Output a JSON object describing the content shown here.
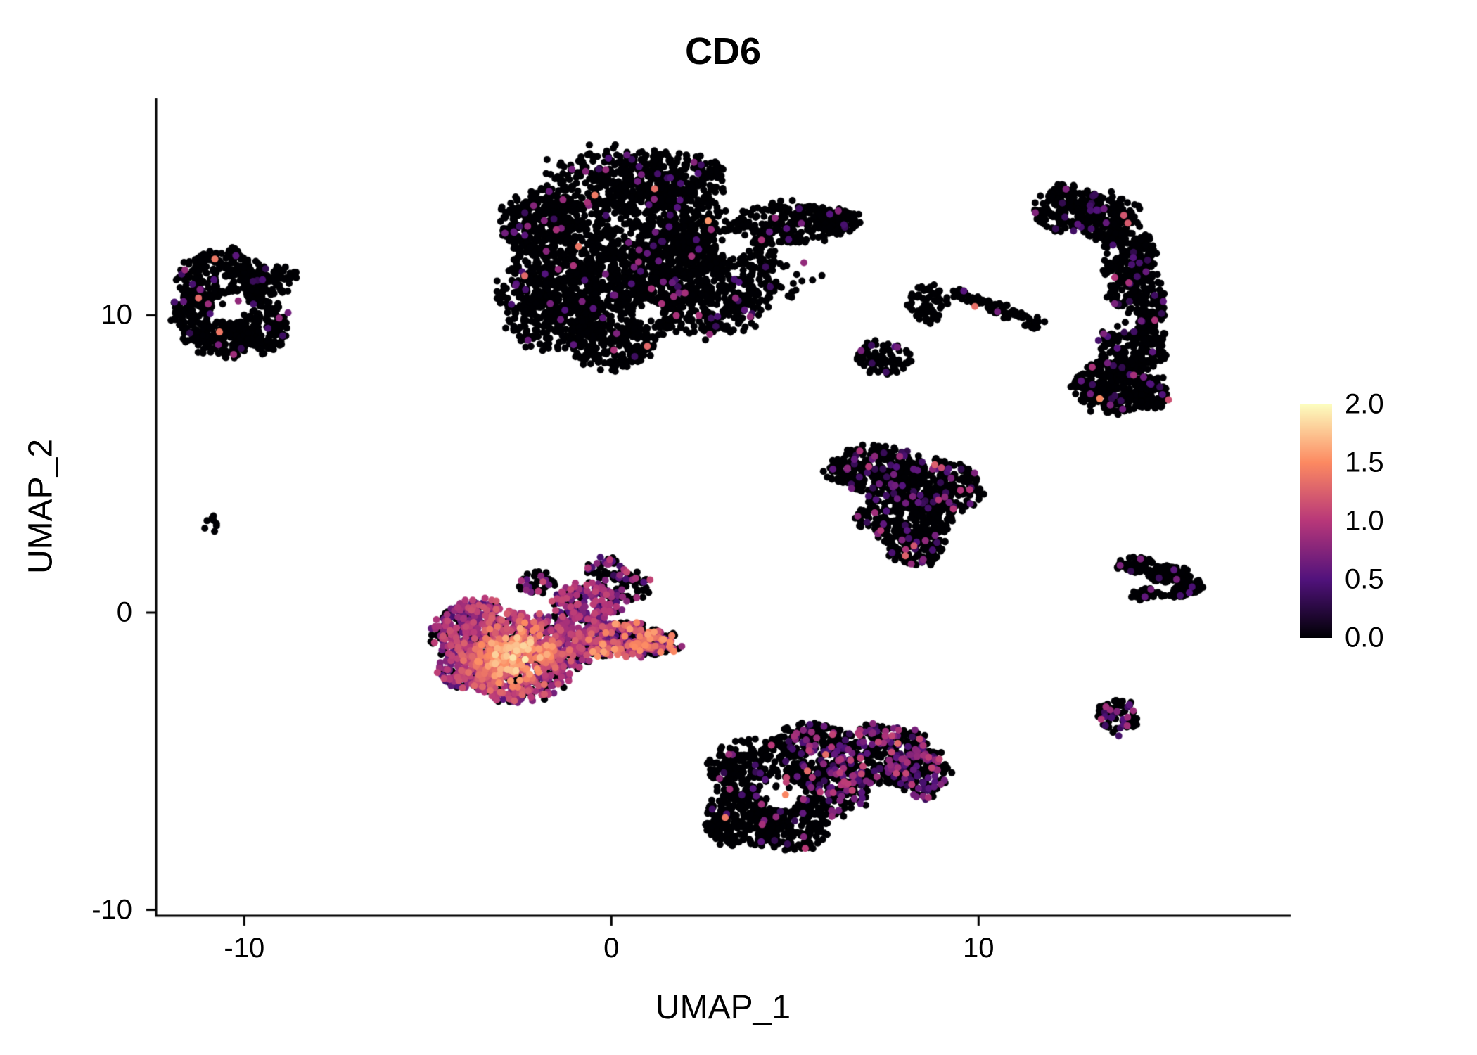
{
  "chart_data": {
    "type": "scatter",
    "title": "CD6",
    "xlabel": "UMAP_1",
    "ylabel": "UMAP_2",
    "xlim": [
      -12.4,
      18.5
    ],
    "ylim": [
      -10.2,
      17.3
    ],
    "x_ticks": [
      "-10",
      "0",
      "10"
    ],
    "x_tick_values": [
      -10,
      0,
      10
    ],
    "y_ticks": [
      "-10",
      "0",
      "10"
    ],
    "y_tick_values": [
      -10,
      0,
      10
    ],
    "grid": false,
    "legend_position": "right",
    "point_radius_px": 5,
    "colorbar": {
      "min": 0,
      "max": 2,
      "tick_labels": [
        "2.0",
        "1.5",
        "1.0",
        "0.5",
        "0.0"
      ],
      "tick_values": [
        2.0,
        1.5,
        1.0,
        0.5,
        0.0
      ],
      "colormap": "magma",
      "stops": [
        {
          "t": 0.0,
          "color": "#000004"
        },
        {
          "t": 0.25,
          "color": "#51127c"
        },
        {
          "t": 0.5,
          "color": "#b73779"
        },
        {
          "t": 0.75,
          "color": "#fc8961"
        },
        {
          "t": 1.0,
          "color": "#fcfdbf"
        }
      ]
    },
    "clusters": [
      {
        "name": "top-center-large",
        "p_pos": 0.035,
        "v": [
          0.35,
          0.95
        ],
        "skew": 1.5,
        "rare_hi": {
          "p": 0.002,
          "v": [
            1.2,
            1.6
          ]
        },
        "holes": [
          {
            "c": [
              3.3,
              12.4
            ],
            "r": 0.45
          },
          {
            "c": [
              1.0,
              10.1
            ],
            "r": 0.4
          }
        ],
        "blobs": [
          {
            "c": [
              0.2,
              12.4
            ],
            "rx": 2.9,
            "ry": 3.1,
            "n": 1500
          },
          {
            "c": [
              2.3,
              11.3
            ],
            "rx": 2.2,
            "ry": 2.0,
            "n": 800
          },
          {
            "c": [
              -1.6,
              10.6
            ],
            "rx": 1.5,
            "ry": 1.7,
            "n": 400
          },
          {
            "c": [
              1.4,
              14.6
            ],
            "rx": 1.7,
            "ry": 0.9,
            "n": 250
          },
          {
            "c": [
              -2.0,
              13.2
            ],
            "rx": 1.0,
            "ry": 1.0,
            "n": 180
          },
          {
            "c": [
              0.0,
              9.0
            ],
            "rx": 1.2,
            "ry": 0.8,
            "n": 200
          },
          {
            "c": [
              4.8,
              13.1
            ],
            "rx": 1.5,
            "ry": 0.7,
            "n": 240
          },
          {
            "c": [
              6.1,
              13.2
            ],
            "rx": 0.7,
            "ry": 0.4,
            "n": 80
          },
          {
            "c": [
              5.0,
              11.2
            ],
            "rx": 0.8,
            "ry": 0.6,
            "n": 14
          }
        ]
      },
      {
        "name": "left",
        "p_pos": 0.03,
        "v": [
          0.3,
          0.95
        ],
        "skew": 1.4,
        "rare_hi": {
          "p": 0.003,
          "v": [
            1.2,
            1.45
          ]
        },
        "holes": [
          {
            "c": [
              -10.3,
              10.3
            ],
            "r": 0.5
          }
        ],
        "blobs": [
          {
            "c": [
              -10.6,
              11.2
            ],
            "rx": 1.2,
            "ry": 1.0,
            "n": 300
          },
          {
            "c": [
              -11.4,
              10.0
            ],
            "rx": 0.6,
            "ry": 0.9,
            "n": 130
          },
          {
            "c": [
              -9.7,
              9.7
            ],
            "rx": 0.9,
            "ry": 1.0,
            "n": 220
          },
          {
            "c": [
              -10.6,
              9.2
            ],
            "rx": 0.8,
            "ry": 0.6,
            "n": 110
          },
          {
            "c": [
              -9.2,
              11.2
            ],
            "rx": 0.6,
            "ry": 0.5,
            "n": 70
          }
        ],
        "extra_points": [
          {
            "p": [
              -10.8,
              11.9
            ],
            "v": 1.4
          }
        ]
      },
      {
        "name": "tiny-far-left",
        "p_pos": 0,
        "v": [
          0.3,
          0.8
        ],
        "blobs": [
          {
            "c": [
              -10.9,
              3.0
            ],
            "rx": 0.18,
            "ry": 0.3,
            "n": 8
          }
        ]
      },
      {
        "name": "central-high-expression",
        "p_pos": 0.72,
        "v": [
          0.35,
          1.1
        ],
        "skew": 1.0,
        "hotspot": {
          "c": [
            -2.6,
            -1.4
          ],
          "sigma": 0.9,
          "gain": 1.0
        },
        "blobs": [
          {
            "c": [
              -3.5,
              -0.7
            ],
            "rx": 1.3,
            "ry": 1.1,
            "n": 420
          },
          {
            "c": [
              -2.6,
              -1.9
            ],
            "rx": 1.4,
            "ry": 1.1,
            "n": 480
          },
          {
            "c": [
              -1.3,
              -0.9
            ],
            "rx": 1.3,
            "ry": 0.9,
            "n": 380
          },
          {
            "c": [
              -3.9,
              -1.8
            ],
            "rx": 0.8,
            "ry": 0.8,
            "n": 180
          },
          {
            "c": [
              0.3,
              -0.9
            ],
            "rx": 1.2,
            "ry": 0.6,
            "n": 240,
            "p_pos": 0.6,
            "v": [
              0.4,
              1.6
            ]
          },
          {
            "c": [
              1.3,
              -1.0
            ],
            "rx": 0.6,
            "ry": 0.4,
            "n": 90,
            "p_pos": 0.55,
            "v": [
              0.4,
              1.6
            ]
          },
          {
            "c": [
              -0.6,
              0.4
            ],
            "rx": 1.0,
            "ry": 0.6,
            "n": 150
          },
          {
            "c": [
              0.4,
              0.9
            ],
            "rx": 0.7,
            "ry": 0.5,
            "n": 60,
            "p_pos": 0.25
          },
          {
            "c": [
              -2.0,
              1.0
            ],
            "rx": 0.5,
            "ry": 0.4,
            "n": 40,
            "p_pos": 0.3
          },
          {
            "c": [
              -0.2,
              1.5
            ],
            "rx": 0.5,
            "ry": 0.35,
            "n": 40,
            "p_pos": 0.2
          }
        ]
      },
      {
        "name": "mid-right-triangle",
        "p_pos": 0.1,
        "v": [
          0.3,
          1.0
        ],
        "skew": 1.4,
        "rare_hi": {
          "p": 0.003,
          "v": [
            1.1,
            1.3
          ]
        },
        "blobs": [
          {
            "c": [
              7.2,
              4.8
            ],
            "rx": 1.3,
            "ry": 0.8,
            "n": 280
          },
          {
            "c": [
              8.9,
              4.2
            ],
            "rx": 1.2,
            "ry": 0.9,
            "n": 280
          },
          {
            "c": [
              8.0,
              3.2
            ],
            "rx": 1.3,
            "ry": 0.8,
            "n": 260
          },
          {
            "c": [
              8.3,
              2.2
            ],
            "rx": 0.8,
            "ry": 0.6,
            "n": 130
          }
        ]
      },
      {
        "name": "bottom-center",
        "p_pos": 0.05,
        "v": [
          0.3,
          1.1
        ],
        "skew": 1.3,
        "rare_hi": {
          "p": 0.003,
          "v": [
            1.2,
            1.5
          ]
        },
        "holes": [
          {
            "c": [
              4.6,
              -6.1
            ],
            "r": 0.55
          }
        ],
        "blobs": [
          {
            "c": [
              4.0,
              -5.3
            ],
            "rx": 1.3,
            "ry": 1.0,
            "n": 300
          },
          {
            "c": [
              3.6,
              -6.9
            ],
            "rx": 1.1,
            "ry": 1.0,
            "n": 280
          },
          {
            "c": [
              5.0,
              -7.3
            ],
            "rx": 0.9,
            "ry": 0.7,
            "n": 160
          },
          {
            "c": [
              5.8,
              -5.9
            ],
            "rx": 1.2,
            "ry": 1.0,
            "n": 280,
            "p_pos": 0.25
          },
          {
            "c": [
              7.3,
              -4.8
            ],
            "rx": 1.4,
            "ry": 1.0,
            "n": 320,
            "p_pos": 0.3
          },
          {
            "c": [
              8.4,
              -5.4
            ],
            "rx": 0.8,
            "ry": 0.8,
            "n": 150,
            "p_pos": 0.3
          },
          {
            "c": [
              5.4,
              -4.3
            ],
            "rx": 0.9,
            "ry": 0.6,
            "n": 140,
            "p_pos": 0.2
          }
        ],
        "extra_points": [
          {
            "p": [
              3.1,
              -6.9
            ],
            "v": 1.4
          },
          {
            "p": [
              7.8,
              -4.4
            ],
            "v": 1.3
          }
        ]
      },
      {
        "name": "right-tall-crescent",
        "p_pos": 0.05,
        "v": [
          0.3,
          1.0
        ],
        "skew": 1.5,
        "rare_hi": {
          "p": 0.004,
          "v": [
            1.1,
            1.45
          ]
        },
        "holes": [
          {
            "c": [
              13.9,
              9.8
            ],
            "r": 0.45
          },
          {
            "c": [
              13.2,
              11.9
            ],
            "r": 0.35
          }
        ],
        "blobs": [
          {
            "c": [
              12.4,
              13.6
            ],
            "rx": 0.9,
            "ry": 0.8,
            "n": 180
          },
          {
            "c": [
              13.5,
              13.3
            ],
            "rx": 0.9,
            "ry": 0.8,
            "n": 200
          },
          {
            "c": [
              14.0,
              12.0
            ],
            "rx": 0.8,
            "ry": 0.9,
            "n": 200
          },
          {
            "c": [
              14.3,
              10.5
            ],
            "rx": 0.8,
            "ry": 1.0,
            "n": 220
          },
          {
            "c": [
              14.2,
              9.0
            ],
            "rx": 0.9,
            "ry": 1.0,
            "n": 240
          },
          {
            "c": [
              13.6,
              7.6
            ],
            "rx": 1.0,
            "ry": 0.9,
            "n": 260
          },
          {
            "c": [
              14.6,
              7.4
            ],
            "rx": 0.6,
            "ry": 0.6,
            "n": 110
          }
        ],
        "extra_points": [
          {
            "p": [
              13.3,
              7.2
            ],
            "v": 1.5
          }
        ]
      },
      {
        "name": "small-mid-a",
        "p_pos": 0.04,
        "v": [
          0.3,
          0.8
        ],
        "blobs": [
          {
            "c": [
              8.6,
              10.4
            ],
            "rx": 0.55,
            "ry": 0.65,
            "n": 70
          }
        ]
      },
      {
        "name": "small-mid-b",
        "p_pos": 0.05,
        "v": [
          0.3,
          0.8
        ],
        "blobs": [
          {
            "c": [
              7.4,
              8.6
            ],
            "rx": 0.8,
            "ry": 0.55,
            "n": 90
          }
        ]
      },
      {
        "name": "mid-streak",
        "p_pos": 0.04,
        "v": [
          0.3,
          0.8
        ],
        "blobs": [
          {
            "c": [
              9.5,
              10.7
            ],
            "rx": 0.25,
            "ry": 0.18,
            "n": 16
          },
          {
            "c": [
              10.0,
              10.5
            ],
            "rx": 0.3,
            "ry": 0.18,
            "n": 20
          },
          {
            "c": [
              10.5,
              10.25
            ],
            "rx": 0.3,
            "ry": 0.18,
            "n": 22
          },
          {
            "c": [
              11.0,
              10.0
            ],
            "rx": 0.3,
            "ry": 0.18,
            "n": 20
          },
          {
            "c": [
              11.5,
              9.75
            ],
            "rx": 0.3,
            "ry": 0.18,
            "n": 16
          }
        ],
        "extra_points": [
          {
            "p": [
              9.9,
              10.3
            ],
            "v": 1.35
          }
        ]
      },
      {
        "name": "right-arrow",
        "p_pos": 0.06,
        "v": [
          0.3,
          0.9
        ],
        "blobs": [
          {
            "c": [
              14.3,
              1.6
            ],
            "rx": 0.5,
            "ry": 0.28,
            "n": 60
          },
          {
            "c": [
              15.2,
              1.3
            ],
            "rx": 0.6,
            "ry": 0.3,
            "n": 80
          },
          {
            "c": [
              15.8,
              0.9
            ],
            "rx": 0.35,
            "ry": 0.25,
            "n": 40
          },
          {
            "c": [
              14.6,
              0.6
            ],
            "rx": 0.45,
            "ry": 0.22,
            "n": 40
          },
          {
            "c": [
              15.3,
              0.7
            ],
            "rx": 0.4,
            "ry": 0.2,
            "n": 30
          }
        ]
      },
      {
        "name": "small-bottom-right",
        "p_pos": 0.22,
        "v": [
          0.3,
          1.0
        ],
        "blobs": [
          {
            "c": [
              13.8,
              -3.5
            ],
            "rx": 0.55,
            "ry": 0.6,
            "n": 75
          }
        ]
      }
    ]
  }
}
